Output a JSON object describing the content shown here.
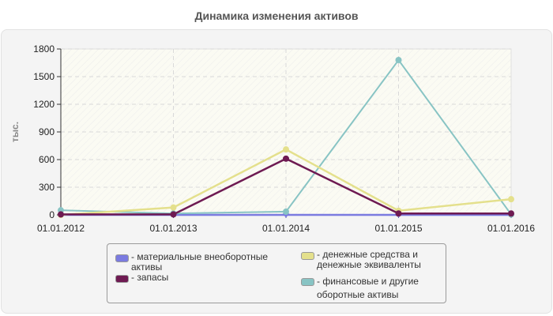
{
  "title": "Динамика изменения активов",
  "colors": {
    "material": "#7b7be0",
    "zapasy": "#6e1a52",
    "money": "#e4e08c",
    "financial": "#88c4c4",
    "panel_bg": "#f4f4f4",
    "plot_bg": "#fdfdf6"
  },
  "legend": {
    "items": [
      {
        "label": "- материальные внеоборотные активы",
        "color": "#7b7be0"
      },
      {
        "label": "- запасы",
        "color": "#6e1a52"
      },
      {
        "label": "- денежные средства и денежные эквиваленты",
        "color": "#e4e08c"
      },
      {
        "label": "- финансовые и другие оборотные активы",
        "color": "#88c4c4"
      }
    ]
  },
  "chart_data": {
    "type": "line",
    "title": "Динамика изменения активов",
    "xlabel": "",
    "ylabel": "тыс.",
    "categories": [
      "01.01.2012",
      "01.01.2013",
      "01.01.2014",
      "01.01.2015",
      "01.01.2016"
    ],
    "yticks": [
      0,
      300,
      600,
      900,
      1200,
      1500,
      1800
    ],
    "ylim": [
      0,
      1800
    ],
    "grid": true,
    "legend_position": "bottom",
    "series": [
      {
        "name": "материальные внеоборотные активы",
        "color": "#7b7be0",
        "values": [
          0,
          0,
          0,
          0,
          0
        ]
      },
      {
        "name": "запасы",
        "color": "#6e1a52",
        "values": [
          5,
          5,
          610,
          15,
          15
        ]
      },
      {
        "name": "денежные средства и денежные эквиваленты",
        "color": "#e4e08c",
        "values": [
          0,
          80,
          710,
          45,
          170
        ]
      },
      {
        "name": "финансовые и другие оборотные активы",
        "color": "#88c4c4",
        "values": [
          50,
          15,
          35,
          1680,
          5
        ]
      }
    ]
  }
}
